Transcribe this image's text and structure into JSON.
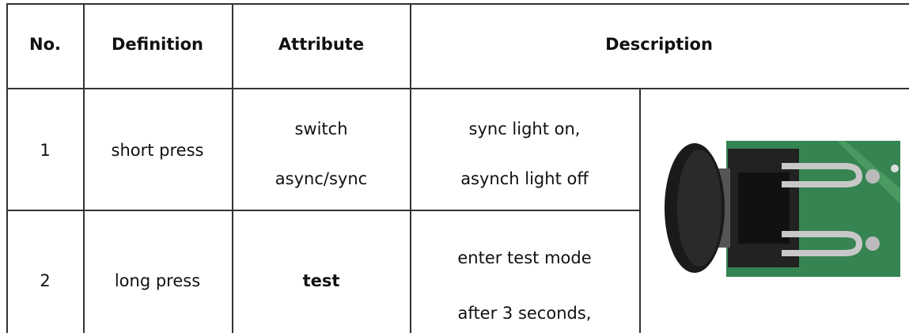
{
  "table": {
    "header": [
      "No.",
      "Definition",
      "Attribute",
      "Description"
    ],
    "rows": [
      {
        "no": "1",
        "definition": "short press",
        "attribute": [
          "switch",
          "async/sync"
        ],
        "description": [
          "sync light on,",
          "asynch light off"
        ]
      },
      {
        "no": "2",
        "definition": "long press",
        "attribute": [
          "test"
        ],
        "description": [
          "enter test mode",
          "after 3 seconds,"
        ]
      }
    ]
  }
}
